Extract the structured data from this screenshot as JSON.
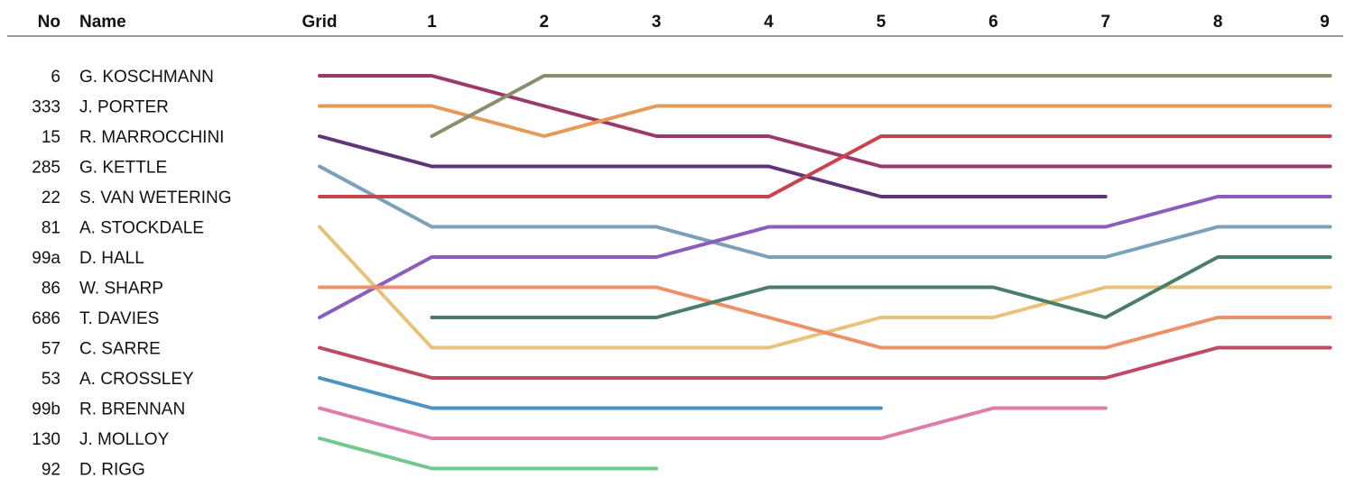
{
  "headers": {
    "no": "No",
    "name": "Name",
    "grid": "Grid"
  },
  "chart_data": {
    "type": "line",
    "title": "",
    "x": [
      "Grid",
      "1",
      "2",
      "3",
      "4",
      "5",
      "6",
      "7",
      "8",
      "9"
    ],
    "ylim": [
      1,
      14
    ],
    "y_inverted": true,
    "grid": false,
    "rows": [
      {
        "no": "6",
        "name": "G. KOSCHMANN"
      },
      {
        "no": "333",
        "name": "J. PORTER"
      },
      {
        "no": "15",
        "name": "R. MARROCCHINI"
      },
      {
        "no": "285",
        "name": "G. KETTLE"
      },
      {
        "no": "22",
        "name": "S. VAN WETERING"
      },
      {
        "no": "81",
        "name": "A. STOCKDALE"
      },
      {
        "no": "99a",
        "name": "D. HALL"
      },
      {
        "no": "86",
        "name": "W. SHARP"
      },
      {
        "no": "686",
        "name": "T. DAVIES"
      },
      {
        "no": "57",
        "name": "C. SARRE"
      },
      {
        "no": "53",
        "name": "A. CROSSLEY"
      },
      {
        "no": "99b",
        "name": "R. BRENNAN"
      },
      {
        "no": "130",
        "name": "J. MOLLOY"
      },
      {
        "no": "92",
        "name": "D. RIGG"
      }
    ],
    "series": [
      {
        "color": "#9b3a6a",
        "values": [
          1,
          1,
          2,
          3,
          3,
          4,
          4,
          4,
          4,
          4
        ]
      },
      {
        "color": "#e59a56",
        "values": [
          2,
          2,
          3,
          2,
          2,
          2,
          2,
          2,
          2,
          2
        ]
      },
      {
        "color": "#5e3577",
        "values": [
          3,
          4,
          4,
          4,
          4,
          5,
          5,
          5,
          null,
          null
        ]
      },
      {
        "color": "#7ba1b8",
        "values": [
          4,
          6,
          6,
          6,
          7,
          7,
          7,
          7,
          6,
          6
        ]
      },
      {
        "color": "#c8434c",
        "values": [
          5,
          5,
          5,
          5,
          5,
          3,
          3,
          3,
          3,
          3
        ]
      },
      {
        "color": "#e8c27a",
        "values": [
          6,
          10,
          10,
          10,
          10,
          9,
          9,
          8,
          8,
          8
        ]
      },
      {
        "color": "#8a5dbe",
        "values": [
          9,
          7,
          7,
          7,
          6,
          6,
          6,
          6,
          5,
          5
        ]
      },
      {
        "color": "#ee9068",
        "values": [
          8,
          8,
          8,
          8,
          9,
          10,
          10,
          10,
          9,
          9
        ]
      },
      {
        "color": "#4a7d6a",
        "values": [
          null,
          9,
          9,
          9,
          8,
          8,
          8,
          9,
          7,
          7
        ]
      },
      {
        "color": "#8a8e6a",
        "values": [
          null,
          3,
          1,
          1,
          1,
          1,
          1,
          1,
          1,
          1
        ]
      },
      {
        "color": "#be4a66",
        "values": [
          10,
          11,
          11,
          11,
          11,
          11,
          11,
          11,
          10,
          10
        ]
      },
      {
        "color": "#4b93c4",
        "values": [
          11,
          12,
          12,
          12,
          12,
          12,
          null,
          null,
          null,
          null
        ]
      },
      {
        "color": "#e07ca8",
        "values": [
          12,
          13,
          13,
          13,
          13,
          13,
          12,
          12,
          null,
          null
        ]
      },
      {
        "color": "#72c98e",
        "values": [
          13,
          14,
          14,
          14,
          null,
          null,
          null,
          null,
          null,
          null
        ]
      }
    ]
  }
}
